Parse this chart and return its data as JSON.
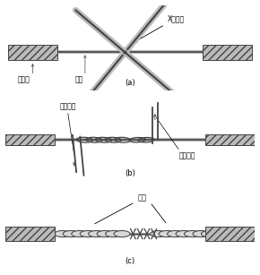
{
  "wire_color": "#444444",
  "insulation_fill": "#aaaaaa",
  "core_fill": "#cccccc",
  "labels": {
    "x_cross": "X形交叉",
    "insulation": "绝缘层",
    "core": "芯线",
    "wind_dir_left": "缠绕方向",
    "wind_dir_right": "缠绕方向",
    "bind_tight": "绑紧",
    "sub_a": "(a)",
    "sub_b": "(b)",
    "sub_c": "(c)"
  },
  "fig_width": 2.9,
  "fig_height": 3.07,
  "dpi": 100
}
